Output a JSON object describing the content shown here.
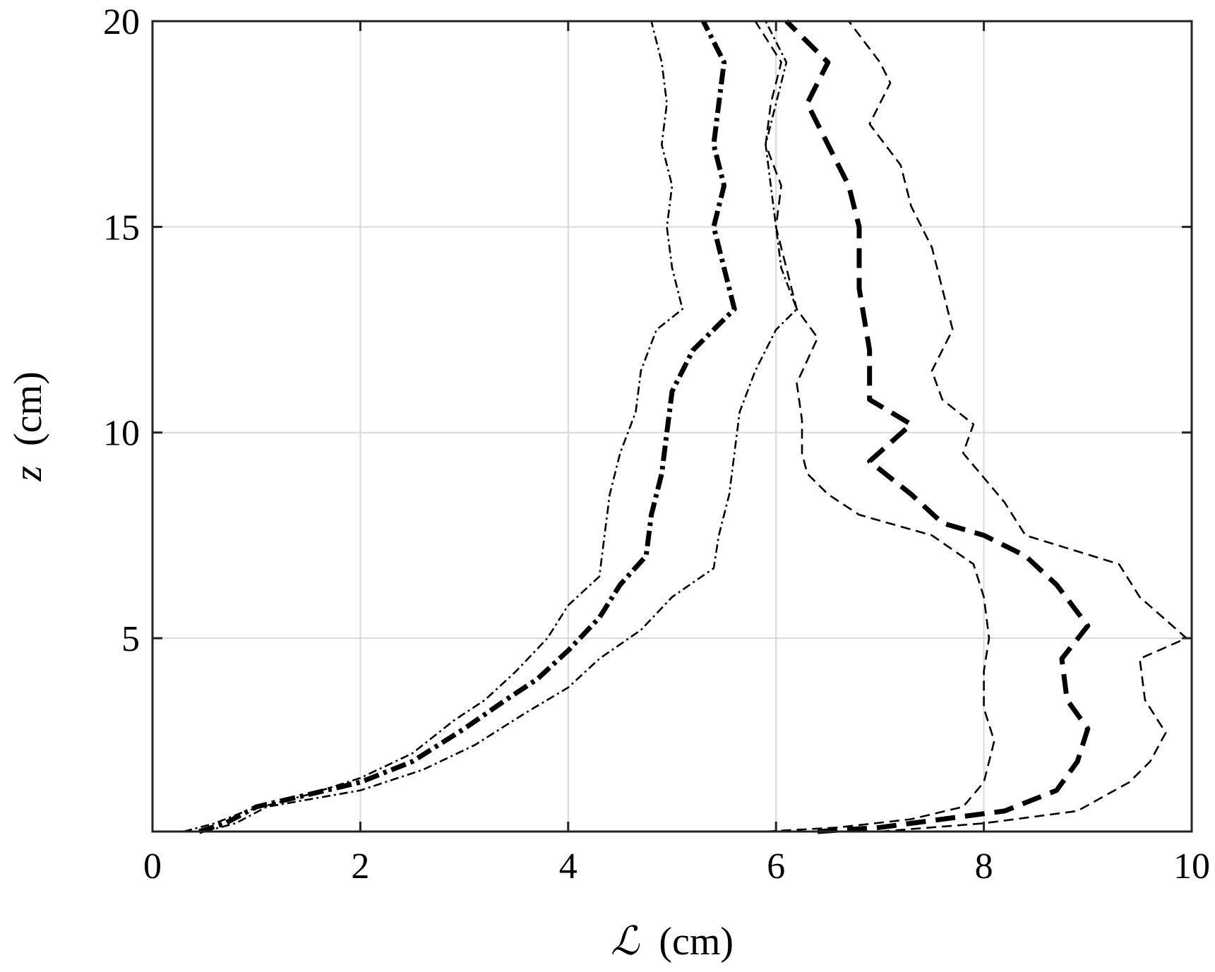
{
  "chart_data": {
    "type": "line",
    "title": "",
    "xlabel_symbol": "ℒ",
    "xlabel_unit": "(cm)",
    "ylabel_symbol": "z",
    "ylabel_unit": "(cm)",
    "xlim": [
      0,
      10
    ],
    "ylim": [
      0.3,
      20
    ],
    "xticks": [
      0,
      2,
      4,
      6,
      8,
      10
    ],
    "yticks": [
      5,
      10,
      15,
      20
    ],
    "grid": true,
    "legend": "none",
    "series": [
      {
        "group": "A",
        "role": "mean",
        "style": "dashdot-thick",
        "points": [
          [
            0.45,
            0.3
          ],
          [
            0.7,
            0.5
          ],
          [
            1.0,
            0.9
          ],
          [
            1.5,
            1.2
          ],
          [
            2.0,
            1.5
          ],
          [
            2.5,
            2.0
          ],
          [
            3.0,
            2.8
          ],
          [
            3.4,
            3.5
          ],
          [
            3.7,
            4.0
          ],
          [
            4.0,
            4.7
          ],
          [
            4.3,
            5.5
          ],
          [
            4.5,
            6.3
          ],
          [
            4.75,
            7.0
          ],
          [
            4.8,
            8.0
          ],
          [
            4.9,
            9.0
          ],
          [
            4.95,
            10.0
          ],
          [
            5.0,
            11.0
          ],
          [
            5.2,
            12.0
          ],
          [
            5.6,
            13.0
          ],
          [
            5.5,
            14.0
          ],
          [
            5.4,
            15.0
          ],
          [
            5.5,
            16.0
          ],
          [
            5.4,
            17.0
          ],
          [
            5.45,
            18.0
          ],
          [
            5.5,
            19.0
          ],
          [
            5.3,
            20.0
          ]
        ]
      },
      {
        "group": "A",
        "role": "lower",
        "style": "dashdot-thin",
        "points": [
          [
            0.3,
            0.3
          ],
          [
            0.6,
            0.5
          ],
          [
            0.9,
            0.8
          ],
          [
            1.5,
            1.2
          ],
          [
            2.0,
            1.6
          ],
          [
            2.5,
            2.2
          ],
          [
            2.9,
            3.0
          ],
          [
            3.2,
            3.5
          ],
          [
            3.5,
            4.2
          ],
          [
            3.8,
            5.0
          ],
          [
            4.0,
            5.8
          ],
          [
            4.3,
            6.5
          ],
          [
            4.35,
            7.5
          ],
          [
            4.4,
            8.5
          ],
          [
            4.5,
            9.5
          ],
          [
            4.65,
            10.5
          ],
          [
            4.7,
            11.5
          ],
          [
            4.85,
            12.5
          ],
          [
            5.1,
            13.0
          ],
          [
            5.0,
            14.0
          ],
          [
            4.95,
            15.0
          ],
          [
            5.0,
            16.0
          ],
          [
            4.9,
            17.0
          ],
          [
            4.95,
            18.0
          ],
          [
            4.9,
            19.0
          ],
          [
            4.8,
            20.0
          ]
        ]
      },
      {
        "group": "A",
        "role": "upper",
        "style": "dashdot-thin",
        "points": [
          [
            0.5,
            0.3
          ],
          [
            0.8,
            0.5
          ],
          [
            1.1,
            0.9
          ],
          [
            2.0,
            1.3
          ],
          [
            2.6,
            1.8
          ],
          [
            3.1,
            2.4
          ],
          [
            3.6,
            3.2
          ],
          [
            4.0,
            3.8
          ],
          [
            4.3,
            4.5
          ],
          [
            4.7,
            5.2
          ],
          [
            5.0,
            6.0
          ],
          [
            5.4,
            6.7
          ],
          [
            5.45,
            7.5
          ],
          [
            5.55,
            8.5
          ],
          [
            5.6,
            9.5
          ],
          [
            5.65,
            10.5
          ],
          [
            5.8,
            11.5
          ],
          [
            6.0,
            12.5
          ],
          [
            6.2,
            13.0
          ],
          [
            6.05,
            14.0
          ],
          [
            6.0,
            15.0
          ],
          [
            5.95,
            16.0
          ],
          [
            5.9,
            17.0
          ],
          [
            6.0,
            18.0
          ],
          [
            6.1,
            19.0
          ],
          [
            5.9,
            20.0
          ]
        ]
      },
      {
        "group": "B",
        "role": "mean",
        "style": "dashed-thick",
        "points": [
          [
            6.4,
            0.3
          ],
          [
            7.0,
            0.4
          ],
          [
            7.6,
            0.6
          ],
          [
            8.2,
            0.8
          ],
          [
            8.7,
            1.3
          ],
          [
            8.9,
            2.0
          ],
          [
            9.0,
            2.8
          ],
          [
            8.8,
            3.5
          ],
          [
            8.75,
            4.5
          ],
          [
            9.0,
            5.3
          ],
          [
            8.7,
            6.3
          ],
          [
            8.4,
            7.0
          ],
          [
            8.0,
            7.5
          ],
          [
            7.6,
            7.8
          ],
          [
            7.3,
            8.5
          ],
          [
            6.9,
            9.3
          ],
          [
            7.3,
            10.2
          ],
          [
            6.9,
            10.8
          ],
          [
            6.9,
            12.0
          ],
          [
            6.8,
            13.5
          ],
          [
            6.8,
            15.0
          ],
          [
            6.7,
            16.0
          ],
          [
            6.5,
            17.0
          ],
          [
            6.3,
            18.0
          ],
          [
            6.5,
            19.0
          ],
          [
            6.1,
            20.0
          ]
        ]
      },
      {
        "group": "B",
        "role": "lower",
        "style": "dashed-thin",
        "points": [
          [
            5.9,
            0.3
          ],
          [
            6.6,
            0.4
          ],
          [
            7.3,
            0.6
          ],
          [
            7.8,
            0.9
          ],
          [
            8.0,
            1.5
          ],
          [
            8.1,
            2.5
          ],
          [
            8.0,
            3.3
          ],
          [
            8.0,
            4.2
          ],
          [
            8.05,
            5.0
          ],
          [
            8.0,
            6.0
          ],
          [
            7.9,
            6.8
          ],
          [
            7.5,
            7.5
          ],
          [
            6.8,
            8.0
          ],
          [
            6.5,
            8.5
          ],
          [
            6.3,
            9.0
          ],
          [
            6.25,
            9.5
          ],
          [
            6.25,
            10.3
          ],
          [
            6.2,
            11.2
          ],
          [
            6.4,
            12.3
          ],
          [
            6.2,
            13.0
          ],
          [
            6.1,
            14.0
          ],
          [
            6.0,
            15.0
          ],
          [
            6.05,
            16.0
          ],
          [
            5.9,
            17.0
          ],
          [
            5.95,
            18.0
          ],
          [
            6.05,
            19.0
          ],
          [
            5.8,
            20.0
          ]
        ]
      },
      {
        "group": "B",
        "role": "upper",
        "style": "dashed-thin",
        "points": [
          [
            7.0,
            0.3
          ],
          [
            8.0,
            0.5
          ],
          [
            8.9,
            0.8
          ],
          [
            9.4,
            1.5
          ],
          [
            9.6,
            2.0
          ],
          [
            9.75,
            2.7
          ],
          [
            9.55,
            3.5
          ],
          [
            9.5,
            4.5
          ],
          [
            9.95,
            5.0
          ],
          [
            9.5,
            6.0
          ],
          [
            9.3,
            6.8
          ],
          [
            8.4,
            7.5
          ],
          [
            8.2,
            8.3
          ],
          [
            8.0,
            8.9
          ],
          [
            7.8,
            9.5
          ],
          [
            7.9,
            10.2
          ],
          [
            7.6,
            10.8
          ],
          [
            7.5,
            11.5
          ],
          [
            7.7,
            12.5
          ],
          [
            7.6,
            13.5
          ],
          [
            7.5,
            14.5
          ],
          [
            7.3,
            15.5
          ],
          [
            7.2,
            16.5
          ],
          [
            6.9,
            17.5
          ],
          [
            7.1,
            18.5
          ],
          [
            7.0,
            19.0
          ],
          [
            6.7,
            20.0
          ]
        ]
      }
    ]
  }
}
